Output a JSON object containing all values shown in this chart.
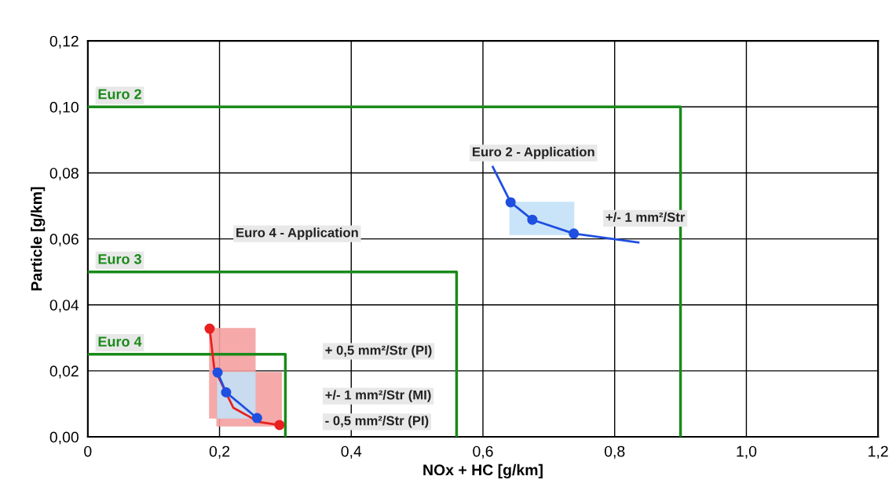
{
  "chart_data": {
    "type": "line",
    "xlabel": "NOx + HC [g/km]",
    "ylabel": "Particle [g/km]",
    "xlim": [
      0,
      1.2
    ],
    "ylim": [
      0,
      0.12
    ],
    "xticks": [
      {
        "value": 0,
        "label": "0"
      },
      {
        "value": 0.2,
        "label": "0,2"
      },
      {
        "value": 0.4,
        "label": "0,4"
      },
      {
        "value": 0.6,
        "label": "0,6"
      },
      {
        "value": 0.8,
        "label": "0,8"
      },
      {
        "value": 1.0,
        "label": "1,0"
      },
      {
        "value": 1.2,
        "label": "1,2"
      }
    ],
    "yticks": [
      {
        "value": 0,
        "label": "0,00"
      },
      {
        "value": 0.02,
        "label": "0,02"
      },
      {
        "value": 0.04,
        "label": "0,04"
      },
      {
        "value": 0.06,
        "label": "0,06"
      },
      {
        "value": 0.08,
        "label": "0,08"
      },
      {
        "value": 0.1,
        "label": "0,10"
      },
      {
        "value": 0.12,
        "label": "0,12"
      }
    ],
    "grid": true,
    "series": [
      {
        "name": "Euro 2",
        "color": "#1a8a1a",
        "x": [
          0,
          0.9,
          0.9
        ],
        "values": [
          0.1,
          0.1,
          0
        ]
      },
      {
        "name": "Euro 3",
        "color": "#1a8a1a",
        "x": [
          0,
          0.56,
          0.56
        ],
        "values": [
          0.05,
          0.05,
          0
        ]
      },
      {
        "name": "Euro 4",
        "color": "#1a8a1a",
        "x": [
          0,
          0.3,
          0.3
        ],
        "values": [
          0.025,
          0.025,
          0
        ]
      },
      {
        "type": "area",
        "color": "#f4a0a0",
        "x": [
          0.185,
          0.254,
          0.254,
          0.185,
          0.185
        ],
        "values": [
          0.0057,
          0.0057,
          0.0328,
          0.0328,
          0.0057
        ]
      },
      {
        "type": "area",
        "color": "#f4a0a0",
        "x": [
          0.196,
          0.294,
          0.294,
          0.196,
          0.196
        ],
        "values": [
          0.0033,
          0.0033,
          0.0195,
          0.0195,
          0.0033
        ]
      },
      {
        "type": "area",
        "color": "#c4e2f8",
        "x": [
          0.197,
          0.254,
          0.254,
          0.197,
          0.197
        ],
        "values": [
          0.0057,
          0.0057,
          0.0195,
          0.0195,
          0.0057
        ]
      },
      {
        "type": "area",
        "color": "#c4e2f8",
        "x": [
          0.641,
          0.738,
          0.738,
          0.641,
          0.641
        ],
        "values": [
          0.0613,
          0.0613,
          0.0711,
          0.0711,
          0.0613
        ]
      },
      {
        "color": "#e82020",
        "x": [
          0.185,
          0.192,
          0.221,
          0.26,
          0.291
        ],
        "values": [
          0.0328,
          0.0207,
          0.0088,
          0.0045,
          0.0036
        ]
      },
      {
        "type": "scatter",
        "color": "#e82020",
        "x": [
          0.185,
          0.291
        ],
        "values": [
          0.0328,
          0.0036
        ]
      },
      {
        "color": "#1f4fe0",
        "x": [
          0.197,
          0.21,
          0.257
        ],
        "values": [
          0.0195,
          0.0135,
          0.0057
        ]
      },
      {
        "type": "scatter",
        "color": "#1f4fe0",
        "x": [
          0.197,
          0.21,
          0.257
        ],
        "values": [
          0.0195,
          0.0135,
          0.0057
        ]
      },
      {
        "color": "#1f4fe0",
        "x": [
          0.615,
          0.642,
          0.675,
          0.738,
          0.836
        ],
        "values": [
          0.0818,
          0.0711,
          0.0658,
          0.0616,
          0.0589
        ]
      },
      {
        "type": "scatter",
        "color": "#1f4fe0",
        "x": [
          0.642,
          0.675,
          0.738
        ],
        "values": [
          0.0711,
          0.0658,
          0.0616
        ]
      }
    ],
    "annotations": [
      "Euro 4 - Application",
      "Euro 2 - Application",
      "+/- 1 mm²/Str",
      "+ 0,5 mm²/Str (PI)",
      "+/- 1 mm²/Str (MI)",
      "- 0,5 mm²/Str (PI)"
    ]
  }
}
